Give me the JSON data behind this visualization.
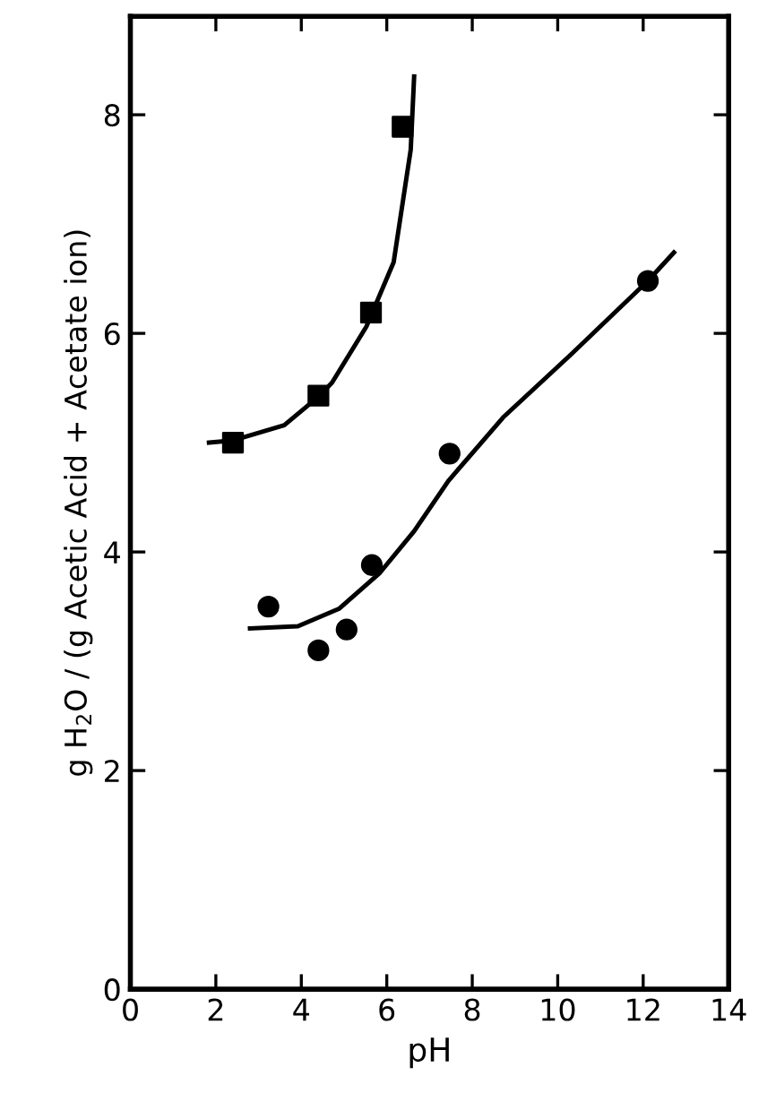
{
  "chart_data": {
    "type": "scatter",
    "xlabel": "pH",
    "ylabel": "g H$_{2}$O / (g Acetic Acid + Acetate ion)",
    "xlim": [
      0,
      14
    ],
    "ylim": [
      0,
      8.9
    ],
    "xticks": [
      0,
      2,
      4,
      6,
      8,
      10,
      12,
      14
    ],
    "yticks": [
      0,
      2,
      4,
      6,
      8
    ],
    "grid": false,
    "series": [
      {
        "marker": "square",
        "color": "#000000",
        "x": [
          2.4,
          4.4,
          5.63,
          6.37
        ],
        "values": [
          5.0,
          5.43,
          6.19,
          7.89
        ]
      },
      {
        "marker": "circle",
        "color": "#000000",
        "x": [
          3.23,
          4.4,
          5.06,
          5.65,
          7.47,
          12.11
        ],
        "values": [
          3.5,
          3.1,
          3.29,
          3.88,
          4.9,
          6.48
        ]
      },
      {
        "type": "line",
        "color": "#000000",
        "marker": "none",
        "line_style": "solid",
        "x": [
          1.84,
          2.4,
          3.6,
          4.4,
          4.72,
          5.52,
          6.16,
          6.56,
          6.64
        ],
        "values": [
          5.0,
          5.02,
          5.16,
          5.42,
          5.55,
          6.06,
          6.65,
          7.68,
          8.35
        ]
      },
      {
        "type": "line",
        "color": "#000000",
        "marker": "none",
        "line_style": "solid",
        "x": [
          2.8,
          3.92,
          4.88,
          5.84,
          6.64,
          7.44,
          8.72,
          10.32,
          12.11,
          12.72
        ],
        "values": [
          3.3,
          3.32,
          3.48,
          3.81,
          4.19,
          4.65,
          5.23,
          5.81,
          6.48,
          6.74
        ]
      }
    ]
  }
}
